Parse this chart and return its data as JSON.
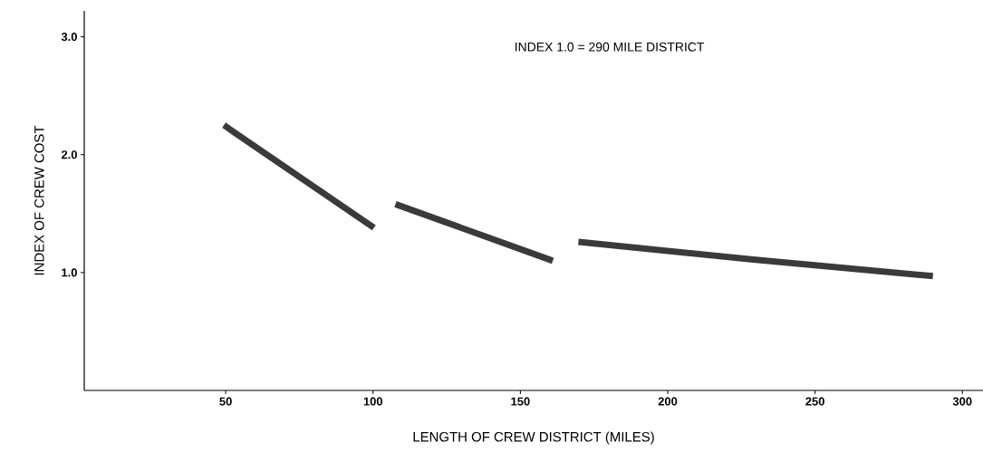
{
  "chart_data": {
    "type": "line",
    "xlabel": "LENGTH OF CREW DISTRICT (MILES)",
    "ylabel": "INDEX OF CREW COST",
    "annotations": [
      "INDEX 1.0 = 290 MILE DISTRICT"
    ],
    "series": [
      {
        "color": "#3a3a3a",
        "x": [
          49.4,
          100.3
        ],
        "values": [
          2.25,
          1.38
        ]
      },
      {
        "color": "#3a3a3a",
        "x": [
          107.6,
          161
        ],
        "values": [
          1.58,
          1.1
        ]
      },
      {
        "color": "#3a3a3a",
        "x": [
          169.7,
          229,
          290
        ],
        "values": [
          1.26,
          1.11,
          0.97
        ]
      }
    ],
    "xlim": [
      2,
      307
    ],
    "ylim": [
      0,
      3.22
    ],
    "xticks": [
      50,
      100,
      150,
      200,
      250,
      300
    ],
    "yticks": [
      {
        "value": 1,
        "label": "1.0"
      },
      {
        "value": 2,
        "label": "2.0"
      },
      {
        "value": 3,
        "label": "3.0"
      }
    ],
    "grid": false,
    "marker": "none",
    "line_style": "solid"
  }
}
